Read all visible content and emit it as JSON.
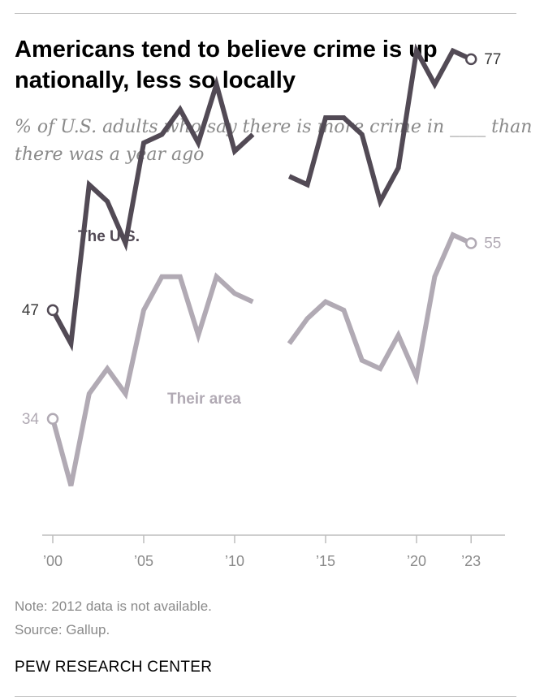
{
  "header": {
    "title": "Americans tend to believe crime is up nationally, less so locally",
    "subtitle": "% of U.S. adults who say there is more crime in ____ than there was a year ago"
  },
  "chart_data": {
    "type": "line",
    "x": [
      2000,
      2001,
      2002,
      2003,
      2004,
      2005,
      2006,
      2007,
      2008,
      2009,
      2010,
      2011,
      2013,
      2014,
      2015,
      2016,
      2017,
      2018,
      2019,
      2020,
      2021,
      2022,
      2023
    ],
    "x_ticks": [
      2000,
      2005,
      2010,
      2015,
      2020,
      2023
    ],
    "x_tick_labels": [
      "’00",
      "’05",
      "’10",
      "’15",
      "’20",
      "’23"
    ],
    "gap_after": 2011,
    "ylim": [
      20,
      90
    ],
    "series": [
      {
        "name": "The U.S.",
        "color": "#524a55",
        "values": [
          47,
          43,
          62,
          60,
          55,
          67,
          68,
          71,
          67,
          74,
          66,
          68,
          63,
          62,
          70,
          70,
          68,
          60,
          64,
          78,
          74,
          78,
          77
        ],
        "start_label": "47",
        "end_label": "77"
      },
      {
        "name": "Their area",
        "color": "#b1aab4",
        "values": [
          34,
          26,
          37,
          40,
          37,
          47,
          51,
          51,
          44,
          51,
          49,
          48,
          43,
          46,
          48,
          47,
          41,
          40,
          44,
          39,
          51,
          56,
          55
        ],
        "start_label": "34",
        "end_label": "55"
      }
    ]
  },
  "footer": {
    "note": "Note: 2012 data is not available.",
    "source": "Source: Gallup.",
    "brand": "PEW RESEARCH CENTER"
  }
}
